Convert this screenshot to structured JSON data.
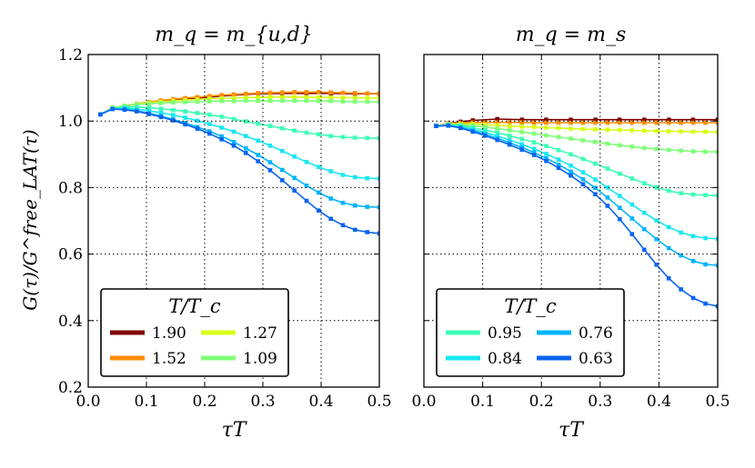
{
  "figure": {
    "ylabel": "G(τ)/G^free_LAT(τ)",
    "xlabel": "τT",
    "legend_title": "T/T_c"
  },
  "chart_data": [
    {
      "type": "line",
      "title": "m_q = m_{u,d}",
      "xlabel": "τT",
      "ylabel": "G(τ)/G^free_LAT(τ)",
      "xlim": [
        0.0,
        0.5
      ],
      "ylim": [
        0.2,
        1.2
      ],
      "xticks": [
        "0.0",
        "0.1",
        "0.2",
        "0.3",
        "0.4",
        "0.5"
      ],
      "yticks": [
        "0.2",
        "0.4",
        "0.6",
        "0.8",
        "1.0",
        "1.2"
      ],
      "grid": true,
      "legend": {
        "title": "T/T_c",
        "location": "lower-left",
        "entries": [
          "1.90",
          "1.27",
          "1.52",
          "1.09"
        ]
      },
      "series": [
        {
          "name": "1.90",
          "color": "#7f0000",
          "x": [
            0.0208,
            0.0417,
            0.0625,
            0.0833,
            0.125,
            0.167,
            0.208,
            0.25,
            0.292,
            0.333,
            0.375,
            0.417,
            0.458,
            0.5
          ],
          "values": [
            1.02,
            1.04,
            1.045,
            1.05,
            1.06,
            1.066,
            1.072,
            1.078,
            1.082,
            1.083,
            1.083,
            1.083,
            1.082,
            1.082
          ]
        },
        {
          "name": "1.52",
          "color": "#ff8c00",
          "x": [
            0.0208,
            0.0417,
            0.0625,
            0.0833,
            0.1042,
            0.125,
            0.1458,
            0.1667,
            0.1875,
            0.2083,
            0.2292,
            0.25,
            0.2708,
            0.2917,
            0.3125,
            0.3333,
            0.3542,
            0.375,
            0.3958,
            0.4167,
            0.4375,
            0.4583,
            0.4792,
            0.5
          ],
          "values": [
            1.02,
            1.04,
            1.046,
            1.052,
            1.057,
            1.062,
            1.066,
            1.069,
            1.072,
            1.075,
            1.078,
            1.08,
            1.082,
            1.084,
            1.085,
            1.086,
            1.087,
            1.087,
            1.087,
            1.086,
            1.085,
            1.084,
            1.083,
            1.082
          ]
        },
        {
          "name": "1.27",
          "color": "#d6ff19",
          "x": [
            0.0208,
            0.0417,
            0.0625,
            0.0833,
            0.1042,
            0.125,
            0.1458,
            0.1667,
            0.1875,
            0.2083,
            0.2292,
            0.25,
            0.2708,
            0.2917,
            0.3125,
            0.3333,
            0.3542,
            0.375,
            0.3958,
            0.4167,
            0.4375,
            0.4583,
            0.4792,
            0.5
          ],
          "values": [
            1.02,
            1.04,
            1.046,
            1.051,
            1.055,
            1.058,
            1.061,
            1.063,
            1.065,
            1.067,
            1.068,
            1.069,
            1.07,
            1.071,
            1.072,
            1.072,
            1.072,
            1.072,
            1.071,
            1.071,
            1.07,
            1.07,
            1.069,
            1.069
          ]
        },
        {
          "name": "1.09",
          "color": "#80ff78",
          "x": [
            0.0208,
            0.0417,
            0.0625,
            0.0833,
            0.1042,
            0.125,
            0.1458,
            0.1667,
            0.1875,
            0.2083,
            0.2292,
            0.25,
            0.2708,
            0.2917,
            0.3125,
            0.3333,
            0.3542,
            0.375,
            0.3958,
            0.4167,
            0.4375,
            0.4583,
            0.4792,
            0.5
          ],
          "values": [
            1.02,
            1.04,
            1.046,
            1.05,
            1.052,
            1.054,
            1.056,
            1.057,
            1.058,
            1.059,
            1.06,
            1.06,
            1.061,
            1.061,
            1.061,
            1.061,
            1.061,
            1.061,
            1.06,
            1.06,
            1.059,
            1.058,
            1.058,
            1.057
          ]
        },
        {
          "name": "0.95",
          "color": "#3cffb4",
          "x": [
            0.0208,
            0.0417,
            0.0625,
            0.0833,
            0.1042,
            0.125,
            0.1458,
            0.1667,
            0.1875,
            0.2083,
            0.2292,
            0.25,
            0.2708,
            0.2917,
            0.3125,
            0.3333,
            0.3542,
            0.375,
            0.3958,
            0.4167,
            0.4375,
            0.4583,
            0.4792,
            0.5
          ],
          "values": [
            1.02,
            1.038,
            1.042,
            1.042,
            1.04,
            1.037,
            1.033,
            1.029,
            1.024,
            1.019,
            1.013,
            1.006,
            0.999,
            0.992,
            0.985,
            0.978,
            0.971,
            0.965,
            0.96,
            0.955,
            0.952,
            0.95,
            0.949,
            0.948
          ]
        },
        {
          "name": "0.84",
          "color": "#19e6f0",
          "x": [
            0.0208,
            0.0417,
            0.0625,
            0.0833,
            0.1042,
            0.125,
            0.1458,
            0.1667,
            0.1875,
            0.2083,
            0.2292,
            0.25,
            0.2708,
            0.2917,
            0.3125,
            0.3333,
            0.3542,
            0.375,
            0.3958,
            0.4167,
            0.4375,
            0.4583,
            0.4792,
            0.5
          ],
          "values": [
            1.02,
            1.037,
            1.039,
            1.036,
            1.031,
            1.025,
            1.018,
            1.01,
            1.001,
            0.991,
            0.98,
            0.968,
            0.955,
            0.941,
            0.926,
            0.91,
            0.893,
            0.877,
            0.862,
            0.849,
            0.838,
            0.831,
            0.828,
            0.827
          ]
        },
        {
          "name": "0.76",
          "color": "#00b4ff",
          "x": [
            0.0208,
            0.0417,
            0.0625,
            0.0833,
            0.1042,
            0.125,
            0.1458,
            0.1667,
            0.1875,
            0.2083,
            0.2292,
            0.25,
            0.2708,
            0.2917,
            0.3125,
            0.3333,
            0.3542,
            0.375,
            0.3958,
            0.4167,
            0.4375,
            0.4583,
            0.4792,
            0.5
          ],
          "values": [
            1.02,
            1.036,
            1.036,
            1.031,
            1.024,
            1.015,
            1.005,
            0.994,
            0.982,
            0.969,
            0.954,
            0.937,
            0.918,
            0.898,
            0.876,
            0.853,
            0.829,
            0.806,
            0.785,
            0.767,
            0.754,
            0.746,
            0.742,
            0.741
          ]
        },
        {
          "name": "0.63",
          "color": "#0a64f0",
          "x": [
            0.0208,
            0.0417,
            0.0625,
            0.0833,
            0.1042,
            0.125,
            0.1458,
            0.1667,
            0.1875,
            0.2083,
            0.2292,
            0.25,
            0.2708,
            0.2917,
            0.3125,
            0.3333,
            0.3542,
            0.375,
            0.3958,
            0.4167,
            0.4375,
            0.4583,
            0.4792,
            0.5
          ],
          "values": [
            1.02,
            1.036,
            1.034,
            1.029,
            1.021,
            1.012,
            1.002,
            0.99,
            0.977,
            0.962,
            0.945,
            0.926,
            0.904,
            0.879,
            0.852,
            0.822,
            0.791,
            0.76,
            0.731,
            0.706,
            0.687,
            0.673,
            0.666,
            0.662
          ]
        }
      ]
    },
    {
      "type": "line",
      "title": "m_q = m_s",
      "xlabel": "τT",
      "ylabel": "",
      "xlim": [
        0.0,
        0.5
      ],
      "ylim": [
        0.2,
        1.2
      ],
      "xticks": [
        "0.0",
        "0.1",
        "0.2",
        "0.3",
        "0.4",
        "0.5"
      ],
      "yticks": [],
      "grid": true,
      "legend": {
        "title": "T/T_c",
        "location": "lower-left",
        "entries": [
          "0.95",
          "0.76",
          "0.84",
          "0.63"
        ]
      },
      "series": [
        {
          "name": "1.90",
          "color": "#7f0000",
          "x": [
            0.0208,
            0.0417,
            0.0625,
            0.0833,
            0.125,
            0.167,
            0.208,
            0.25,
            0.292,
            0.333,
            0.375,
            0.417,
            0.458,
            0.5
          ],
          "values": [
            0.985,
            0.993,
            0.998,
            1.002,
            1.006,
            1.004,
            1.004,
            1.004,
            1.004,
            1.004,
            1.004,
            1.004,
            1.004,
            1.004
          ]
        },
        {
          "name": "1.52",
          "color": "#ff8c00",
          "x": [
            0.0208,
            0.0417,
            0.0625,
            0.0833,
            0.1042,
            0.125,
            0.1458,
            0.1667,
            0.1875,
            0.2083,
            0.2292,
            0.25,
            0.2708,
            0.2917,
            0.3125,
            0.3333,
            0.3542,
            0.375,
            0.3958,
            0.4167,
            0.4375,
            0.4583,
            0.4792,
            0.5
          ],
          "values": [
            0.985,
            0.992,
            0.995,
            0.996,
            0.996,
            0.996,
            0.996,
            0.996,
            0.995,
            0.995,
            0.995,
            0.995,
            0.995,
            0.995,
            0.995,
            0.995,
            0.995,
            0.995,
            0.995,
            0.995,
            0.995,
            0.995,
            0.995,
            0.995
          ]
        },
        {
          "name": "1.27",
          "color": "#d6ff19",
          "x": [
            0.0208,
            0.0417,
            0.0625,
            0.0833,
            0.1042,
            0.125,
            0.1458,
            0.1667,
            0.1875,
            0.2083,
            0.2292,
            0.25,
            0.2708,
            0.2917,
            0.3125,
            0.3333,
            0.3542,
            0.375,
            0.3958,
            0.4167,
            0.4375,
            0.4583,
            0.4792,
            0.5
          ],
          "values": [
            0.985,
            0.991,
            0.992,
            0.991,
            0.989,
            0.987,
            0.985,
            0.983,
            0.982,
            0.98,
            0.979,
            0.977,
            0.976,
            0.975,
            0.974,
            0.973,
            0.972,
            0.971,
            0.97,
            0.969,
            0.969,
            0.968,
            0.968,
            0.967
          ]
        },
        {
          "name": "1.09",
          "color": "#80ff78",
          "x": [
            0.0208,
            0.0417,
            0.0625,
            0.0833,
            0.1042,
            0.125,
            0.1458,
            0.1667,
            0.1875,
            0.2083,
            0.2292,
            0.25,
            0.2708,
            0.2917,
            0.3125,
            0.3333,
            0.3542,
            0.375,
            0.3958,
            0.4167,
            0.4375,
            0.4583,
            0.4792,
            0.5
          ],
          "values": [
            0.985,
            0.99,
            0.989,
            0.986,
            0.982,
            0.977,
            0.972,
            0.967,
            0.962,
            0.957,
            0.952,
            0.947,
            0.942,
            0.937,
            0.932,
            0.927,
            0.923,
            0.919,
            0.916,
            0.913,
            0.911,
            0.909,
            0.908,
            0.907
          ]
        },
        {
          "name": "0.95",
          "color": "#3cffb4",
          "x": [
            0.0208,
            0.0417,
            0.0625,
            0.0833,
            0.1042,
            0.125,
            0.1458,
            0.1667,
            0.1875,
            0.2083,
            0.2292,
            0.25,
            0.2708,
            0.2917,
            0.3125,
            0.3333,
            0.3542,
            0.375,
            0.3958,
            0.4167,
            0.4375,
            0.4583,
            0.4792,
            0.5
          ],
          "values": [
            0.985,
            0.989,
            0.986,
            0.98,
            0.973,
            0.965,
            0.956,
            0.946,
            0.936,
            0.925,
            0.913,
            0.9,
            0.886,
            0.872,
            0.857,
            0.842,
            0.827,
            0.813,
            0.8,
            0.79,
            0.783,
            0.779,
            0.777,
            0.776
          ]
        },
        {
          "name": "0.84",
          "color": "#19e6f0",
          "x": [
            0.0208,
            0.0417,
            0.0625,
            0.0833,
            0.1042,
            0.125,
            0.1458,
            0.1667,
            0.1875,
            0.2083,
            0.2292,
            0.25,
            0.2708,
            0.2917,
            0.3125,
            0.3333,
            0.3542,
            0.375,
            0.3958,
            0.4167,
            0.4375,
            0.4583,
            0.4792,
            0.5
          ],
          "values": [
            0.985,
            0.988,
            0.983,
            0.975,
            0.966,
            0.955,
            0.943,
            0.93,
            0.916,
            0.901,
            0.884,
            0.866,
            0.846,
            0.824,
            0.8,
            0.775,
            0.749,
            0.724,
            0.701,
            0.681,
            0.665,
            0.654,
            0.648,
            0.646
          ]
        },
        {
          "name": "0.76",
          "color": "#00b4ff",
          "x": [
            0.0208,
            0.0417,
            0.0625,
            0.0833,
            0.1042,
            0.125,
            0.1458,
            0.1667,
            0.1875,
            0.2083,
            0.2292,
            0.25,
            0.2708,
            0.2917,
            0.3125,
            0.3333,
            0.3542,
            0.375,
            0.3958,
            0.4167,
            0.4375,
            0.4583,
            0.4792,
            0.5
          ],
          "values": [
            0.985,
            0.987,
            0.98,
            0.971,
            0.96,
            0.948,
            0.935,
            0.921,
            0.905,
            0.888,
            0.869,
            0.848,
            0.825,
            0.799,
            0.77,
            0.739,
            0.707,
            0.675,
            0.645,
            0.618,
            0.596,
            0.579,
            0.569,
            0.566
          ]
        },
        {
          "name": "0.63",
          "color": "#0a64f0",
          "x": [
            0.0208,
            0.0417,
            0.0625,
            0.0833,
            0.1042,
            0.125,
            0.1458,
            0.1667,
            0.1875,
            0.2083,
            0.2292,
            0.25,
            0.2708,
            0.2917,
            0.3125,
            0.3333,
            0.3542,
            0.375,
            0.3958,
            0.4167,
            0.4375,
            0.4583,
            0.4792,
            0.5
          ],
          "values": [
            0.985,
            0.986,
            0.979,
            0.968,
            0.956,
            0.943,
            0.929,
            0.914,
            0.898,
            0.88,
            0.859,
            0.836,
            0.81,
            0.78,
            0.745,
            0.705,
            0.66,
            0.613,
            0.568,
            0.527,
            0.494,
            0.468,
            0.451,
            0.443
          ]
        }
      ]
    }
  ]
}
